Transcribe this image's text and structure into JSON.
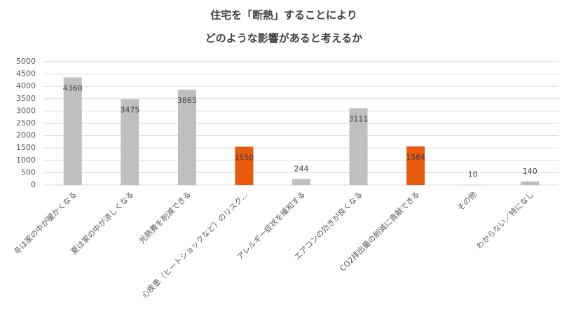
{
  "chart_data": {
    "type": "bar",
    "title": [
      "住宅を「断熱」することにより",
      "どのような影響があると考えるか"
    ],
    "categories": [
      "冬は家の中が暖かくなる",
      "夏は家の中が涼しくなる",
      "光熱費を削減できる",
      "心疾患（ヒートショックなど）のリスク…",
      "アレルギー症状を緩和する",
      "エアコンの効きが良くなる",
      "CO2排出量の削減に貢献できる",
      "その他",
      "わからない／特になし"
    ],
    "values": [
      4360,
      3475,
      3865,
      1550,
      244,
      3111,
      1564,
      10,
      140
    ],
    "colors": [
      "#bfbfbf",
      "#bfbfbf",
      "#bfbfbf",
      "#e85a0c",
      "#bfbfbf",
      "#bfbfbf",
      "#e85a0c",
      "#bfbfbf",
      "#bfbfbf"
    ],
    "ylim": [
      0,
      5000
    ],
    "yticks": [
      0,
      500,
      1000,
      1500,
      2000,
      2500,
      3000,
      3500,
      4000,
      4500,
      5000
    ],
    "grid": true
  }
}
